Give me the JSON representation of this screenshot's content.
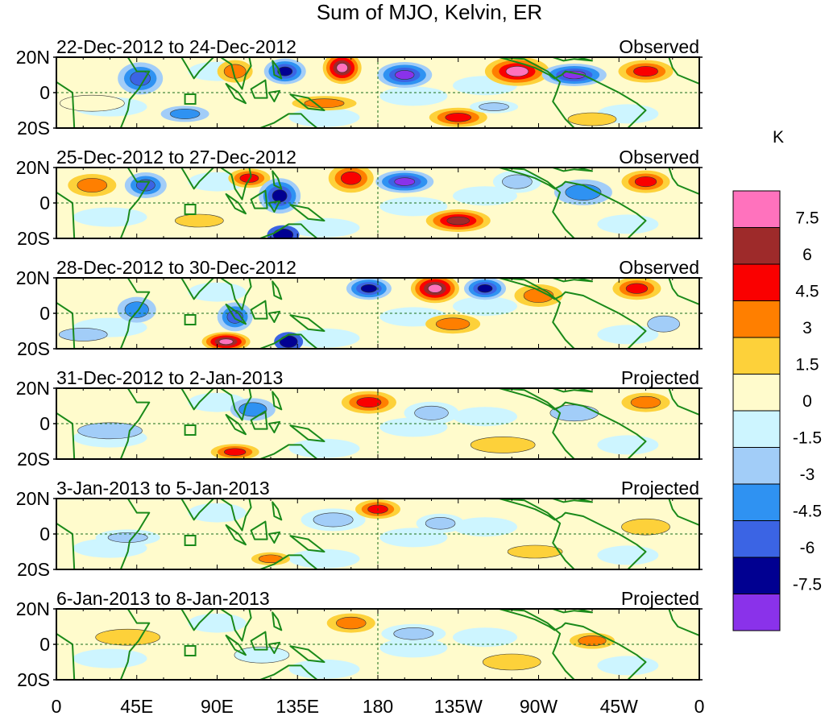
{
  "title": "Sum of MJO, Kelvin, ER",
  "colorbar": {
    "unit": "K",
    "colors": [
      "#ff72bd",
      "#9e2a2a",
      "#fa0000",
      "#ff7f00",
      "#fdd13a",
      "#fffbcc",
      "#cdf5ff",
      "#a2cdf8",
      "#2f92f2",
      "#3b64e4",
      "#010091",
      "#8a32ea"
    ],
    "ticks": [
      "7.5",
      "6",
      "4.5",
      "3",
      "1.5",
      "0",
      "-1.5",
      "-3",
      "-4.5",
      "-6",
      "-7.5"
    ]
  },
  "axes": {
    "lat_labels": [
      "20N",
      "0",
      "20S"
    ],
    "lon_labels": [
      "0",
      "45E",
      "90E",
      "135E",
      "180",
      "135W",
      "90W",
      "45W",
      "0"
    ]
  },
  "panels": [
    {
      "date_range": "22-Dec-2012 to 24-Dec-2012",
      "kind": "Observed"
    },
    {
      "date_range": "25-Dec-2012 to 27-Dec-2012",
      "kind": "Observed"
    },
    {
      "date_range": "28-Dec-2012 to 30-Dec-2012",
      "kind": "Observed"
    },
    {
      "date_range": "31-Dec-2012 to 2-Jan-2013",
      "kind": "Projected"
    },
    {
      "date_range": "3-Jan-2013 to 5-Jan-2013",
      "kind": "Projected"
    },
    {
      "date_range": "6-Jan-2013 to 8-Jan-2013",
      "kind": "Projected"
    }
  ],
  "map_colors": {
    "coast": "#1a8a1a",
    "equator": "#1a6e1a",
    "frame": "#000000"
  }
}
